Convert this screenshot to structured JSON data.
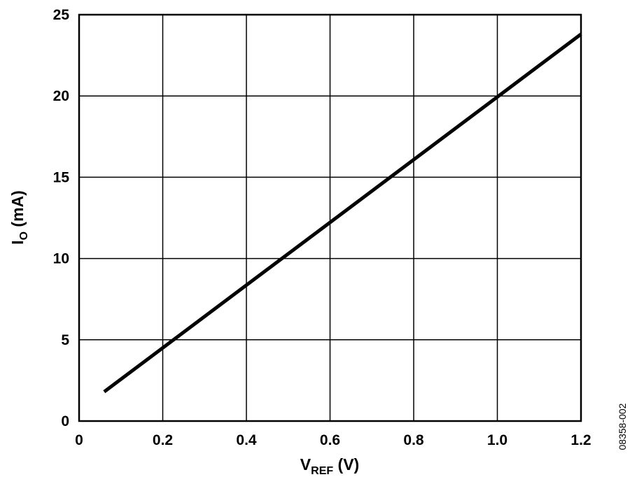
{
  "chart_data": {
    "type": "line",
    "title": "",
    "xlabel": {
      "main": "V",
      "sub": "REF",
      "unit": " (V)"
    },
    "ylabel": {
      "main": "I",
      "sub": "O",
      "unit": " (mA)"
    },
    "xlim": [
      0,
      1.2
    ],
    "ylim": [
      0,
      25
    ],
    "x_ticks": [
      0,
      0.2,
      0.4,
      0.6,
      0.8,
      1.0,
      1.2
    ],
    "x_tick_labels": [
      "0",
      "0.2",
      "0.4",
      "0.6",
      "0.8",
      "1.0",
      "1.2"
    ],
    "y_ticks": [
      0,
      5,
      10,
      15,
      20,
      25
    ],
    "y_tick_labels": [
      "0",
      "5",
      "10",
      "15",
      "20",
      "25"
    ],
    "grid": true,
    "line_color": "#000000",
    "series": [
      {
        "x": [
          0.06,
          1.2
        ],
        "y": [
          1.8,
          23.8
        ]
      }
    ]
  },
  "figure_id": "08358-002"
}
